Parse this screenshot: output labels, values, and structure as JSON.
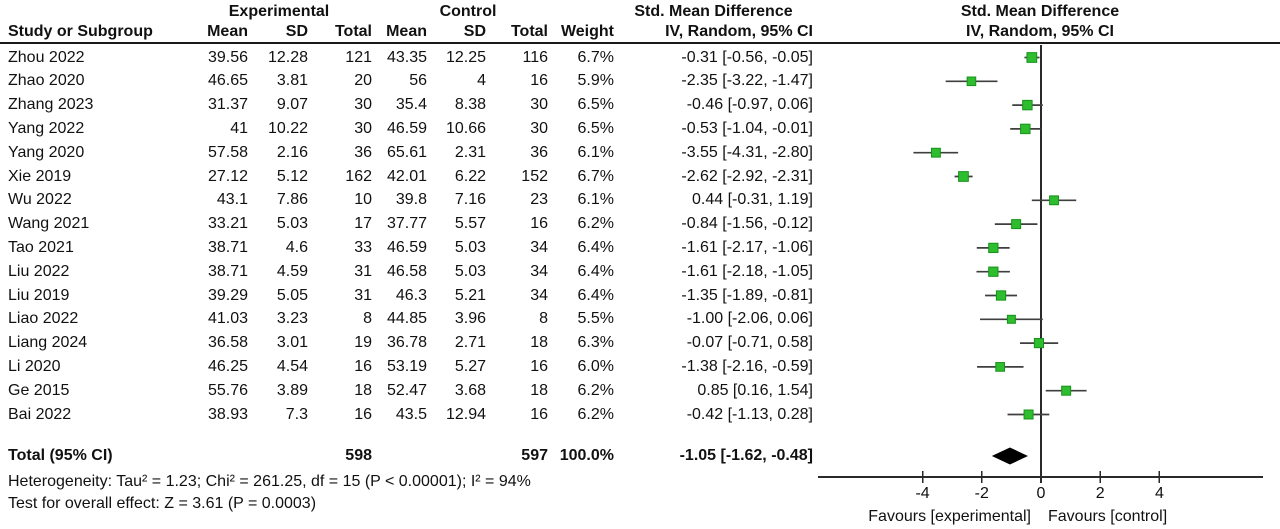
{
  "table": {
    "group_headers": {
      "experimental": "Experimental",
      "control": "Control"
    },
    "columns": {
      "study": "Study or Subgroup",
      "mean": "Mean",
      "sd": "SD",
      "total": "Total",
      "weight": "Weight"
    },
    "smd": {
      "title": "Std. Mean Difference",
      "subtitle": "IV, Random, 95% CI"
    }
  },
  "chart_data": {
    "type": "forest",
    "effect_measure": "Std. Mean Difference",
    "model": "IV, Random, 95% CI",
    "studies": [
      {
        "name": "Zhou 2022",
        "exp_mean": "39.56",
        "exp_sd": "12.28",
        "exp_total": "121",
        "ctl_mean": "43.35",
        "ctl_sd": "12.25",
        "ctl_total": "116",
        "weight": "6.7%",
        "ci_text": "-0.31 [-0.56, -0.05]",
        "est": -0.31,
        "lo": -0.56,
        "hi": -0.05
      },
      {
        "name": "Zhao 2020",
        "exp_mean": "46.65",
        "exp_sd": "3.81",
        "exp_total": "20",
        "ctl_mean": "56",
        "ctl_sd": "4",
        "ctl_total": "16",
        "weight": "5.9%",
        "ci_text": "-2.35 [-3.22, -1.47]",
        "est": -2.35,
        "lo": -3.22,
        "hi": -1.47
      },
      {
        "name": "Zhang 2023",
        "exp_mean": "31.37",
        "exp_sd": "9.07",
        "exp_total": "30",
        "ctl_mean": "35.4",
        "ctl_sd": "8.38",
        "ctl_total": "30",
        "weight": "6.5%",
        "ci_text": "-0.46 [-0.97, 0.06]",
        "est": -0.46,
        "lo": -0.97,
        "hi": 0.06
      },
      {
        "name": "Yang 2022",
        "exp_mean": "41",
        "exp_sd": "10.22",
        "exp_total": "30",
        "ctl_mean": "46.59",
        "ctl_sd": "10.66",
        "ctl_total": "30",
        "weight": "6.5%",
        "ci_text": "-0.53 [-1.04, -0.01]",
        "est": -0.53,
        "lo": -1.04,
        "hi": -0.01
      },
      {
        "name": "Yang 2020",
        "exp_mean": "57.58",
        "exp_sd": "2.16",
        "exp_total": "36",
        "ctl_mean": "65.61",
        "ctl_sd": "2.31",
        "ctl_total": "36",
        "weight": "6.1%",
        "ci_text": "-3.55 [-4.31, -2.80]",
        "est": -3.55,
        "lo": -4.31,
        "hi": -2.8
      },
      {
        "name": "Xie 2019",
        "exp_mean": "27.12",
        "exp_sd": "5.12",
        "exp_total": "162",
        "ctl_mean": "42.01",
        "ctl_sd": "6.22",
        "ctl_total": "152",
        "weight": "6.7%",
        "ci_text": "-2.62 [-2.92, -2.31]",
        "est": -2.62,
        "lo": -2.92,
        "hi": -2.31
      },
      {
        "name": "Wu 2022",
        "exp_mean": "43.1",
        "exp_sd": "7.86",
        "exp_total": "10",
        "ctl_mean": "39.8",
        "ctl_sd": "7.16",
        "ctl_total": "23",
        "weight": "6.1%",
        "ci_text": "0.44 [-0.31, 1.19]",
        "est": 0.44,
        "lo": -0.31,
        "hi": 1.19
      },
      {
        "name": "Wang 2021",
        "exp_mean": "33.21",
        "exp_sd": "5.03",
        "exp_total": "17",
        "ctl_mean": "37.77",
        "ctl_sd": "5.57",
        "ctl_total": "16",
        "weight": "6.2%",
        "ci_text": "-0.84 [-1.56, -0.12]",
        "est": -0.84,
        "lo": -1.56,
        "hi": -0.12
      },
      {
        "name": "Tao 2021",
        "exp_mean": "38.71",
        "exp_sd": "4.6",
        "exp_total": "33",
        "ctl_mean": "46.59",
        "ctl_sd": "5.03",
        "ctl_total": "34",
        "weight": "6.4%",
        "ci_text": "-1.61 [-2.17, -1.06]",
        "est": -1.61,
        "lo": -2.17,
        "hi": -1.06
      },
      {
        "name": "Liu 2022",
        "exp_mean": "38.71",
        "exp_sd": "4.59",
        "exp_total": "31",
        "ctl_mean": "46.58",
        "ctl_sd": "5.03",
        "ctl_total": "34",
        "weight": "6.4%",
        "ci_text": "-1.61 [-2.18, -1.05]",
        "est": -1.61,
        "lo": -2.18,
        "hi": -1.05
      },
      {
        "name": "Liu 2019",
        "exp_mean": "39.29",
        "exp_sd": "5.05",
        "exp_total": "31",
        "ctl_mean": "46.3",
        "ctl_sd": "5.21",
        "ctl_total": "34",
        "weight": "6.4%",
        "ci_text": "-1.35 [-1.89, -0.81]",
        "est": -1.35,
        "lo": -1.89,
        "hi": -0.81
      },
      {
        "name": "Liao 2022",
        "exp_mean": "41.03",
        "exp_sd": "3.23",
        "exp_total": "8",
        "ctl_mean": "44.85",
        "ctl_sd": "3.96",
        "ctl_total": "8",
        "weight": "5.5%",
        "ci_text": "-1.00 [-2.06, 0.06]",
        "est": -1.0,
        "lo": -2.06,
        "hi": 0.06
      },
      {
        "name": "Liang 2024",
        "exp_mean": "36.58",
        "exp_sd": "3.01",
        "exp_total": "19",
        "ctl_mean": "36.78",
        "ctl_sd": "2.71",
        "ctl_total": "18",
        "weight": "6.3%",
        "ci_text": "-0.07 [-0.71, 0.58]",
        "est": -0.07,
        "lo": -0.71,
        "hi": 0.58
      },
      {
        "name": "Li 2020",
        "exp_mean": "46.25",
        "exp_sd": "4.54",
        "exp_total": "16",
        "ctl_mean": "53.19",
        "ctl_sd": "5.27",
        "ctl_total": "16",
        "weight": "6.0%",
        "ci_text": "-1.38 [-2.16, -0.59]",
        "est": -1.38,
        "lo": -2.16,
        "hi": -0.59
      },
      {
        "name": "Ge 2015",
        "exp_mean": "55.76",
        "exp_sd": "3.89",
        "exp_total": "18",
        "ctl_mean": "52.47",
        "ctl_sd": "3.68",
        "ctl_total": "18",
        "weight": "6.2%",
        "ci_text": "0.85 [0.16, 1.54]",
        "est": 0.85,
        "lo": 0.16,
        "hi": 1.54
      },
      {
        "name": "Bai 2022",
        "exp_mean": "38.93",
        "exp_sd": "7.3",
        "exp_total": "16",
        "ctl_mean": "43.5",
        "ctl_sd": "12.94",
        "ctl_total": "16",
        "weight": "6.2%",
        "ci_text": "-0.42 [-1.13, 0.28]",
        "est": -0.42,
        "lo": -1.13,
        "hi": 0.28
      }
    ],
    "total": {
      "label": "Total (95% CI)",
      "exp_total": "598",
      "ctl_total": "597",
      "weight": "100.0%",
      "ci_text": "-1.05 [-1.62, -0.48]",
      "est": -1.05,
      "lo": -1.62,
      "hi": -0.48
    },
    "axis": {
      "ticks": [
        -4,
        -2,
        0,
        2,
        4
      ],
      "xmin": -7.5,
      "xmax": 7.5
    },
    "favours_left": "Favours [experimental]",
    "favours_right": "Favours [control]",
    "marker_color": "#2ebd2e",
    "marker_border": "#17921a",
    "line_color": "#3f3f3f",
    "diamond_color": "#000000",
    "axis_color": "#2a2a2a"
  },
  "footer": {
    "heterogeneity": "Heterogeneity: Tau² = 1.23; Chi² = 261.25, df = 15 (P < 0.00001); I² = 94%",
    "overall_effect": "Test for overall effect: Z = 3.61 (P = 0.0003)"
  }
}
